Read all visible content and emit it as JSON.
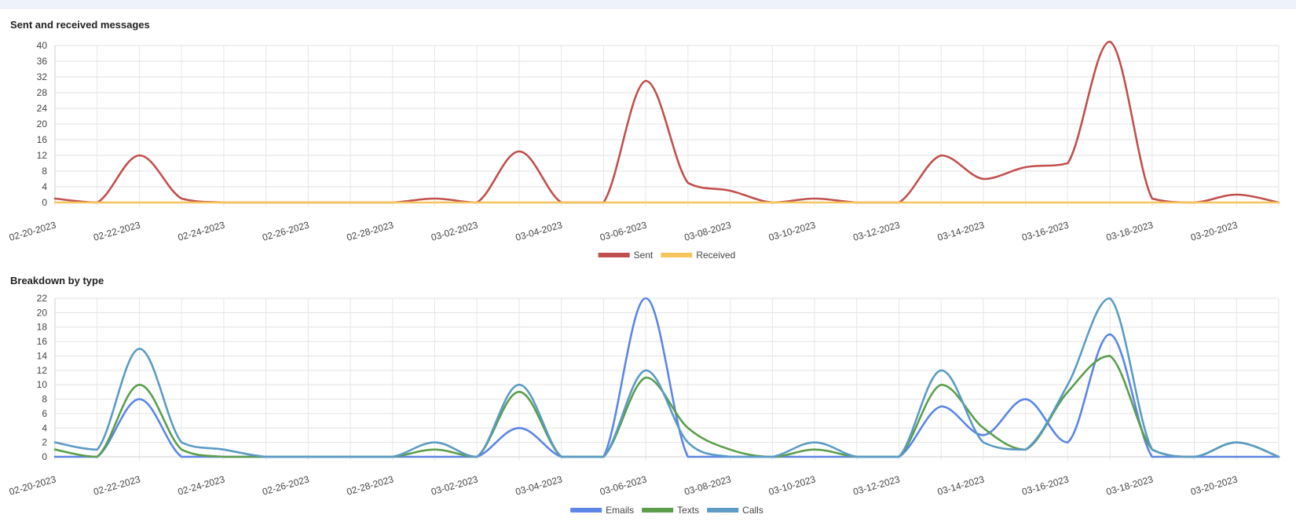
{
  "chart_data": [
    {
      "type": "line",
      "title": "Sent and received messages",
      "x": [
        "02-20-2023",
        "02-21-2023",
        "02-22-2023",
        "02-23-2023",
        "02-24-2023",
        "02-25-2023",
        "02-26-2023",
        "02-27-2023",
        "02-28-2023",
        "03-01-2023",
        "03-02-2023",
        "03-03-2023",
        "03-04-2023",
        "03-05-2023",
        "03-06-2023",
        "03-07-2023",
        "03-08-2023",
        "03-09-2023",
        "03-10-2023",
        "03-11-2023",
        "03-12-2023",
        "03-13-2023",
        "03-14-2023",
        "03-15-2023",
        "03-16-2023",
        "03-17-2023",
        "03-18-2023",
        "03-19-2023",
        "03-20-2023",
        "03-21-2023"
      ],
      "xtick_labels": [
        "02-20-2023",
        "02-22-2023",
        "02-24-2023",
        "02-26-2023",
        "02-28-2023",
        "03-02-2023",
        "03-04-2023",
        "03-06-2023",
        "03-08-2023",
        "03-10-2023",
        "03-12-2023",
        "03-14-2023",
        "03-16-2023",
        "03-18-2023",
        "03-20-2023"
      ],
      "yticks": [
        0,
        4,
        8,
        12,
        16,
        20,
        24,
        28,
        32,
        36,
        40
      ],
      "ylim": [
        0,
        40
      ],
      "series": [
        {
          "name": "Sent",
          "color": "#c0504d",
          "values": [
            1,
            0,
            12,
            1,
            0,
            0,
            0,
            0,
            0,
            1,
            0,
            13,
            0,
            0,
            31,
            5,
            3,
            0,
            1,
            0,
            0,
            12,
            6,
            9,
            10,
            41,
            1,
            0,
            2,
            0
          ]
        },
        {
          "name": "Received",
          "color": "#f6c65b",
          "values": [
            0,
            0,
            0,
            0,
            0,
            0,
            0,
            0,
            0,
            0,
            0,
            0,
            0,
            0,
            0,
            0,
            0,
            0,
            0,
            0,
            0,
            0,
            0,
            0,
            0,
            0,
            0,
            0,
            0,
            0
          ]
        }
      ],
      "legend": "bottom"
    },
    {
      "type": "line",
      "title": "Breakdown by type",
      "x": [
        "02-20-2023",
        "02-21-2023",
        "02-22-2023",
        "02-23-2023",
        "02-24-2023",
        "02-25-2023",
        "02-26-2023",
        "02-27-2023",
        "02-28-2023",
        "03-01-2023",
        "03-02-2023",
        "03-03-2023",
        "03-04-2023",
        "03-05-2023",
        "03-06-2023",
        "03-07-2023",
        "03-08-2023",
        "03-09-2023",
        "03-10-2023",
        "03-11-2023",
        "03-12-2023",
        "03-13-2023",
        "03-14-2023",
        "03-15-2023",
        "03-16-2023",
        "03-17-2023",
        "03-18-2023",
        "03-19-2023",
        "03-20-2023",
        "03-21-2023"
      ],
      "xtick_labels": [
        "02-20-2023",
        "02-22-2023",
        "02-24-2023",
        "02-26-2023",
        "02-28-2023",
        "03-02-2023",
        "03-04-2023",
        "03-06-2023",
        "03-08-2023",
        "03-10-2023",
        "03-12-2023",
        "03-14-2023",
        "03-16-2023",
        "03-18-2023",
        "03-20-2023"
      ],
      "yticks": [
        0,
        2,
        4,
        6,
        8,
        10,
        12,
        14,
        16,
        18,
        20,
        22
      ],
      "ylim": [
        0,
        22
      ],
      "series": [
        {
          "name": "Emails",
          "color": "#5b86e5",
          "values": [
            0,
            0,
            8,
            0,
            0,
            0,
            0,
            0,
            0,
            0,
            0,
            4,
            0,
            0,
            22,
            0,
            0,
            0,
            0,
            0,
            0,
            7,
            3,
            8,
            2,
            17,
            0,
            0,
            0,
            0
          ]
        },
        {
          "name": "Texts",
          "color": "#5a9e4b",
          "values": [
            1,
            0,
            10,
            1,
            0,
            0,
            0,
            0,
            0,
            1,
            0,
            9,
            0,
            0,
            11,
            4,
            1,
            0,
            1,
            0,
            0,
            10,
            4,
            1,
            9,
            14,
            1,
            0,
            2,
            0
          ]
        },
        {
          "name": "Calls",
          "color": "#5b9bc4",
          "values": [
            2,
            1,
            15,
            2,
            1,
            0,
            0,
            0,
            0,
            2,
            0,
            10,
            0,
            0,
            12,
            2,
            0,
            0,
            2,
            0,
            0,
            12,
            2,
            1,
            10,
            22,
            1,
            0,
            2,
            0
          ]
        }
      ],
      "legend": "bottom"
    }
  ]
}
